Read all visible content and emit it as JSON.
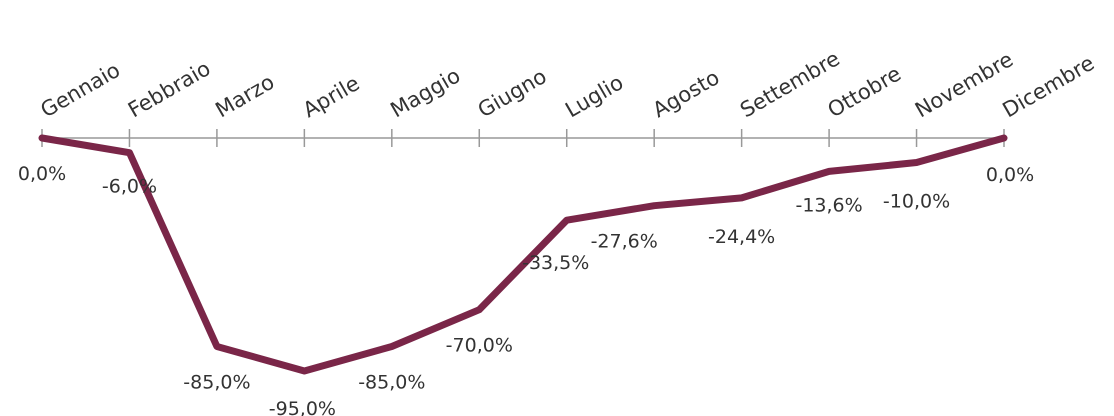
{
  "chart_data": {
    "type": "line",
    "categories": [
      "Gennaio",
      "Febbraio",
      "Marzo",
      "Aprile",
      "Maggio",
      "Giugno",
      "Luglio",
      "Agosto",
      "Settembre",
      "Ottobre",
      "Novembre",
      "Dicembre"
    ],
    "series": [
      {
        "values": [
          0.0,
          -6.0,
          -85.0,
          -95.0,
          -85.0,
          -70.0,
          -33.5,
          -27.6,
          -24.4,
          -13.6,
          -10.0,
          0.0
        ],
        "labels": [
          "0,0%",
          "-6,0%",
          "-85,0%",
          "-95,0%",
          "-85,0%",
          "-70,0%",
          "-33,5%",
          "-27,6%",
          "-24,4%",
          "-13,6%",
          "-10,0%",
          "0,0%"
        ],
        "color": "#7a2648"
      }
    ],
    "title": "",
    "xlabel": "",
    "ylabel": "",
    "ylim": [
      -95,
      0
    ],
    "x_axis_position": "top",
    "grid": false,
    "legend": "none",
    "axis_color": "#999999"
  }
}
